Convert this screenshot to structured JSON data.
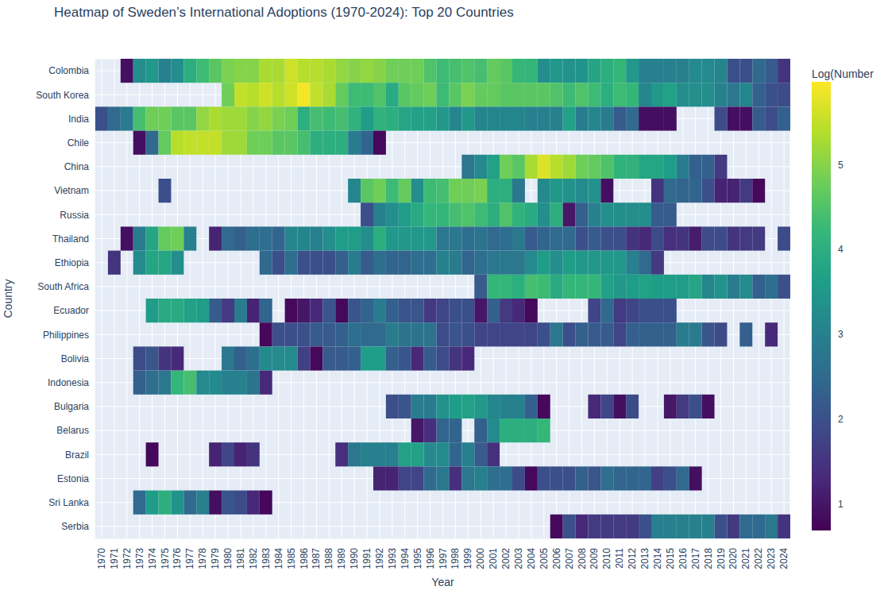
{
  "chart_data": {
    "type": "heatmap",
    "title": "Heatmap of Sweden’s International Adoptions (1970-2024): Top 20 Countries",
    "x_label": "Year",
    "y_label": "Country",
    "x": [
      1970,
      1971,
      1972,
      1973,
      1974,
      1975,
      1976,
      1977,
      1978,
      1979,
      1980,
      1981,
      1982,
      1983,
      1984,
      1985,
      1986,
      1987,
      1988,
      1989,
      1990,
      1991,
      1992,
      1993,
      1994,
      1995,
      1996,
      1997,
      1998,
      1999,
      2000,
      2001,
      2002,
      2003,
      2004,
      2005,
      2006,
      2007,
      2008,
      2009,
      2010,
      2011,
      2012,
      2013,
      2014,
      2015,
      2016,
      2017,
      2018,
      2019,
      2020,
      2021,
      2022,
      2023,
      2024
    ],
    "y": [
      "Colombia",
      "South Korea",
      "India",
      "Chile",
      "China",
      "Vietnam",
      "Russia",
      "Thailand",
      "Ethiopia",
      "South Africa",
      "Ecuador",
      "Philippines",
      "Bolivia",
      "Indonesia",
      "Bulgaria",
      "Belarus",
      "Brazil",
      "Estonia",
      "Sri Lanka",
      "Serbia"
    ],
    "cells": [
      [
        null,
        null,
        0.9,
        3.3,
        3.5,
        3.0,
        3.3,
        4.0,
        4.3,
        4.6,
        4.9,
        5.0,
        5.0,
        5.3,
        5.3,
        5.6,
        5.4,
        5.4,
        5.3,
        5.1,
        5.0,
        5.1,
        5.0,
        4.8,
        4.8,
        4.8,
        4.5,
        4.3,
        4.4,
        4.5,
        4.4,
        4.7,
        4.6,
        4.2,
        4.2,
        3.3,
        3.5,
        3.4,
        3.4,
        3.8,
        4.0,
        4.2,
        3.5,
        3.0,
        3.0,
        3.0,
        3.0,
        3.2,
        3.2,
        3.1,
        2.0,
        2.0,
        2.5,
        2.2,
        1.5
      ],
      [
        null,
        null,
        null,
        null,
        null,
        null,
        null,
        null,
        null,
        null,
        4.8,
        5.5,
        5.4,
        5.6,
        5.4,
        5.6,
        5.9,
        5.5,
        5.3,
        4.7,
        4.3,
        4.3,
        4.5,
        3.9,
        4.6,
        4.7,
        4.8,
        4.3,
        4.6,
        4.9,
        4.7,
        4.7,
        4.6,
        4.6,
        4.6,
        4.6,
        4.5,
        4.3,
        4.5,
        4.3,
        4.0,
        4.3,
        4.2,
        3.1,
        3.5,
        3.7,
        3.3,
        3.3,
        3.3,
        3.0,
        2.8,
        3.1,
        2.3,
        2.0,
        1.9
      ],
      [
        2.0,
        2.5,
        2.9,
        4.4,
        4.8,
        4.8,
        4.6,
        4.6,
        5.1,
        5.3,
        5.2,
        5.2,
        5.0,
        5.1,
        4.9,
        4.8,
        4.0,
        4.4,
        4.3,
        4.4,
        4.1,
        3.6,
        4.1,
        4.0,
        3.8,
        3.7,
        3.7,
        3.5,
        3.1,
        3.5,
        3.1,
        3.1,
        3.1,
        3.1,
        3.0,
        3.0,
        3.0,
        3.7,
        2.9,
        3.1,
        2.9,
        2.2,
        2.5,
        0.9,
        0.9,
        0.9,
        null,
        null,
        null,
        1.9,
        0.9,
        0.9,
        2.2,
        1.9,
        2.3
      ],
      [
        null,
        null,
        null,
        0.9,
        2.5,
        4.7,
        5.4,
        5.5,
        5.5,
        5.5,
        5.2,
        5.2,
        4.8,
        4.8,
        4.6,
        4.6,
        4.4,
        4.0,
        4.0,
        4.0,
        2.9,
        2.4,
        0.8,
        null,
        null,
        null,
        null,
        null,
        null,
        null,
        null,
        null,
        null,
        null,
        null,
        null,
        null,
        null,
        null,
        null,
        null,
        null,
        null,
        null,
        null,
        null,
        null,
        null,
        null,
        null,
        null,
        null,
        null,
        null,
        null
      ],
      [
        null,
        null,
        null,
        null,
        null,
        null,
        null,
        null,
        null,
        null,
        null,
        null,
        null,
        null,
        null,
        null,
        null,
        null,
        null,
        null,
        null,
        null,
        null,
        null,
        null,
        null,
        null,
        null,
        null,
        2.8,
        3.2,
        3.7,
        4.8,
        4.6,
        5.3,
        5.7,
        5.4,
        5.2,
        4.8,
        4.7,
        4.5,
        4.1,
        4.1,
        3.8,
        3.8,
        3.6,
        2.9,
        2.3,
        2.3,
        1.6,
        null,
        null,
        null,
        null,
        null
      ],
      [
        null,
        null,
        null,
        null,
        null,
        2.0,
        null,
        null,
        null,
        null,
        null,
        null,
        null,
        null,
        null,
        null,
        null,
        null,
        null,
        null,
        3.1,
        4.6,
        4.8,
        4.3,
        4.7,
        3.3,
        4.3,
        4.4,
        4.8,
        4.8,
        4.9,
        4.0,
        4.0,
        2.8,
        null,
        3.2,
        3.5,
        3.4,
        3.2,
        3.4,
        0.9,
        null,
        null,
        null,
        1.5,
        2.5,
        2.4,
        2.4,
        2.0,
        1.2,
        1.2,
        1.6,
        0.8,
        null,
        null
      ],
      [
        null,
        null,
        null,
        null,
        null,
        null,
        null,
        null,
        null,
        null,
        null,
        null,
        null,
        null,
        null,
        null,
        null,
        null,
        null,
        null,
        null,
        2.0,
        3.0,
        3.3,
        3.6,
        3.9,
        4.2,
        4.2,
        4.4,
        4.5,
        4.3,
        4.0,
        4.5,
        4.1,
        3.9,
        3.3,
        4.0,
        1.0,
        2.3,
        3.0,
        3.3,
        3.3,
        3.3,
        3.3,
        2.2,
        2.2,
        null,
        null,
        null,
        null,
        null,
        null,
        null,
        null,
        null
      ],
      [
        null,
        null,
        0.9,
        2.9,
        3.8,
        4.7,
        4.8,
        3.0,
        null,
        1.2,
        2.5,
        2.3,
        2.6,
        2.6,
        2.4,
        3.1,
        3.1,
        3.0,
        3.3,
        3.6,
        3.6,
        3.3,
        4.0,
        3.5,
        3.5,
        3.5,
        3.5,
        2.8,
        2.8,
        2.6,
        2.7,
        2.5,
        2.6,
        2.8,
        2.2,
        2.4,
        2.5,
        2.5,
        2.0,
        2.2,
        2.0,
        2.0,
        1.5,
        1.3,
        1.9,
        1.4,
        1.5,
        1.1,
        1.9,
        1.9,
        1.5,
        1.6,
        1.6,
        null,
        1.9
      ],
      [
        null,
        1.5,
        null,
        3.2,
        3.8,
        3.8,
        3.3,
        null,
        null,
        null,
        null,
        null,
        null,
        2.5,
        2.0,
        2.6,
        2.0,
        2.0,
        2.0,
        2.3,
        2.9,
        2.2,
        2.6,
        2.4,
        2.4,
        2.6,
        2.6,
        3.0,
        2.9,
        2.4,
        2.6,
        2.8,
        2.8,
        2.8,
        3.2,
        3.6,
        3.3,
        3.6,
        3.5,
        3.5,
        3.5,
        3.5,
        3.0,
        2.5,
        1.6,
        null,
        null,
        null,
        null,
        null,
        null,
        null,
        null,
        null,
        null
      ],
      [
        null,
        null,
        null,
        null,
        null,
        null,
        null,
        null,
        null,
        null,
        null,
        null,
        null,
        null,
        null,
        null,
        null,
        null,
        null,
        null,
        null,
        null,
        null,
        null,
        null,
        null,
        null,
        null,
        null,
        null,
        2.2,
        4.2,
        4.2,
        4.0,
        4.4,
        4.3,
        3.9,
        4.2,
        4.2,
        4.2,
        3.7,
        3.5,
        3.6,
        3.7,
        3.6,
        3.6,
        3.6,
        3.8,
        3.1,
        3.4,
        2.9,
        3.2,
        2.3,
        2.6,
        2.0
      ],
      [
        null,
        null,
        null,
        null,
        3.6,
        3.9,
        3.9,
        3.7,
        3.6,
        2.2,
        1.6,
        2.9,
        1.2,
        2.4,
        null,
        0.8,
        1.0,
        1.3,
        2.1,
        0.8,
        2.1,
        2.4,
        2.9,
        2.3,
        2.1,
        2.1,
        1.6,
        1.8,
        2.0,
        2.0,
        1.0,
        2.3,
        1.6,
        1.3,
        0.8,
        null,
        null,
        null,
        null,
        1.8,
        2.5,
        1.6,
        1.8,
        2.0,
        2.0,
        2.0,
        null,
        null,
        null,
        null,
        null,
        null,
        null,
        null,
        null
      ],
      [
        null,
        null,
        null,
        null,
        null,
        null,
        null,
        null,
        null,
        null,
        null,
        null,
        null,
        0.8,
        2.0,
        2.0,
        2.0,
        2.2,
        2.2,
        2.3,
        2.6,
        2.5,
        2.5,
        2.9,
        2.7,
        2.7,
        2.7,
        1.9,
        2.1,
        2.0,
        1.8,
        1.8,
        1.8,
        1.8,
        1.8,
        2.0,
        2.8,
        2.0,
        2.3,
        2.2,
        2.2,
        1.8,
        2.3,
        2.3,
        2.3,
        2.3,
        2.9,
        2.9,
        2.1,
        1.9,
        null,
        2.3,
        null,
        1.3,
        null
      ],
      [
        null,
        null,
        null,
        1.9,
        2.1,
        1.5,
        1.3,
        null,
        null,
        null,
        2.8,
        2.3,
        2.6,
        3.2,
        3.2,
        3.2,
        1.7,
        0.8,
        2.2,
        2.2,
        2.3,
        3.6,
        3.6,
        2.3,
        2.1,
        1.3,
        2.2,
        1.9,
        1.5,
        1.3,
        null,
        null,
        null,
        null,
        null,
        null,
        null,
        null,
        null,
        null,
        null,
        null,
        null,
        null,
        null,
        null,
        null,
        null,
        null,
        null,
        null,
        null,
        null,
        null,
        null
      ],
      [
        null,
        null,
        null,
        2.3,
        2.6,
        2.8,
        4.2,
        4.4,
        3.2,
        3.2,
        3.0,
        3.0,
        2.7,
        1.3,
        null,
        null,
        null,
        null,
        null,
        null,
        null,
        null,
        null,
        null,
        null,
        null,
        null,
        null,
        null,
        null,
        null,
        null,
        null,
        null,
        null,
        null,
        null,
        null,
        null,
        null,
        null,
        null,
        null,
        null,
        null,
        null,
        null,
        null,
        null,
        null,
        null,
        null,
        null,
        null,
        null
      ],
      [
        null,
        null,
        null,
        null,
        null,
        null,
        null,
        null,
        null,
        null,
        null,
        null,
        null,
        null,
        null,
        null,
        null,
        null,
        null,
        null,
        null,
        null,
        null,
        2.0,
        2.1,
        2.9,
        2.9,
        3.4,
        3.6,
        3.7,
        3.5,
        3.1,
        3.0,
        3.0,
        2.3,
        0.8,
        null,
        null,
        null,
        1.3,
        1.8,
        0.9,
        1.9,
        null,
        null,
        1.0,
        1.6,
        2.0,
        0.9,
        null,
        null,
        null,
        null,
        null,
        null
      ],
      [
        null,
        null,
        null,
        null,
        null,
        null,
        null,
        null,
        null,
        null,
        null,
        null,
        null,
        null,
        null,
        null,
        null,
        null,
        null,
        null,
        null,
        null,
        null,
        null,
        null,
        1.0,
        1.4,
        2.4,
        2.4,
        null,
        2.3,
        3.2,
        4.0,
        4.0,
        4.0,
        4.2,
        null,
        null,
        null,
        null,
        null,
        null,
        null,
        null,
        null,
        null,
        null,
        null,
        null,
        null,
        null,
        null,
        null,
        null,
        null
      ],
      [
        null,
        null,
        null,
        null,
        0.8,
        null,
        null,
        null,
        null,
        1.2,
        1.8,
        1.2,
        1.5,
        null,
        null,
        null,
        null,
        null,
        null,
        1.4,
        2.8,
        3.0,
        3.0,
        3.0,
        3.7,
        3.7,
        3.2,
        3.2,
        2.4,
        3.0,
        2.2,
        1.4,
        null,
        null,
        null,
        null,
        null,
        null,
        null,
        null,
        null,
        null,
        null,
        null,
        null,
        null,
        null,
        null,
        null,
        null,
        null,
        null,
        null,
        null,
        null
      ],
      [
        null,
        null,
        null,
        null,
        null,
        null,
        null,
        null,
        null,
        null,
        null,
        null,
        null,
        null,
        null,
        null,
        null,
        null,
        null,
        null,
        null,
        null,
        1.2,
        1.2,
        1.8,
        1.8,
        2.5,
        2.8,
        1.4,
        2.8,
        3.0,
        2.6,
        2.6,
        1.9,
        0.8,
        2.0,
        2.0,
        2.0,
        2.3,
        2.1,
        2.6,
        2.4,
        2.4,
        2.4,
        1.7,
        2.0,
        2.5,
        0.9,
        null,
        null,
        null,
        null,
        null,
        null,
        null
      ],
      [
        null,
        null,
        null,
        2.5,
        3.6,
        4.0,
        3.4,
        2.5,
        3.0,
        0.9,
        2.1,
        1.9,
        1.3,
        0.8,
        null,
        null,
        null,
        null,
        null,
        null,
        null,
        null,
        null,
        null,
        null,
        null,
        null,
        null,
        null,
        null,
        null,
        null,
        null,
        null,
        null,
        null,
        null,
        null,
        null,
        null,
        null,
        null,
        null,
        null,
        null,
        null,
        null,
        null,
        null,
        null,
        null,
        null,
        null,
        null,
        null
      ],
      [
        null,
        null,
        null,
        null,
        null,
        null,
        null,
        null,
        null,
        null,
        null,
        null,
        null,
        null,
        null,
        null,
        null,
        null,
        null,
        null,
        null,
        null,
        null,
        null,
        null,
        null,
        null,
        null,
        null,
        null,
        null,
        null,
        null,
        null,
        null,
        null,
        0.8,
        2.0,
        1.3,
        1.6,
        1.6,
        1.6,
        1.6,
        2.0,
        3.0,
        3.0,
        3.0,
        3.0,
        3.0,
        2.0,
        1.6,
        2.5,
        2.5,
        2.8,
        1.5
      ]
    ],
    "colorbar": {
      "title": "Log(Number",
      "range": [
        0.69,
        5.98
      ],
      "ticks": [
        1,
        2,
        3,
        4,
        5
      ]
    },
    "color": "viridis",
    "grid": true
  }
}
